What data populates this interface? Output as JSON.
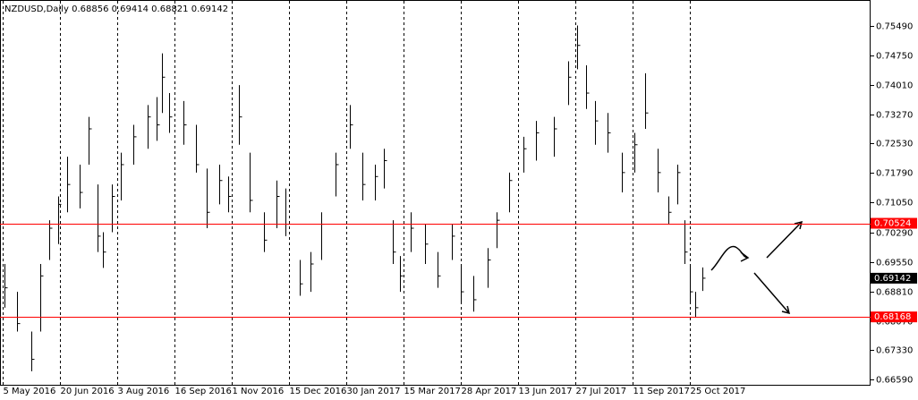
{
  "chart_data": {
    "type": "ohlc",
    "title": "NZDUSD,Daily",
    "last_bar": {
      "open": 0.68856,
      "high": 0.69414,
      "low": 0.68821,
      "close": 0.69142
    },
    "x": [
      1,
      8,
      16,
      21,
      26,
      31,
      36,
      43,
      48,
      53,
      56,
      61,
      66,
      73,
      81,
      86,
      89,
      93,
      101,
      108,
      114,
      121,
      126,
      132,
      138,
      146,
      153,
      158,
      166,
      172,
      178,
      186,
      194,
      201,
      208,
      213,
      218,
      222,
      228,
      236,
      243,
      251,
      256,
      263,
      271,
      276,
      283,
      291,
      298,
      308,
      316,
      321,
      326,
      331,
      338,
      346,
      353,
      359,
      366,
      372,
      377,
      381,
      384,
      387,
      391
    ],
    "high": [
      0.695,
      0.688,
      0.678,
      0.695,
      0.706,
      0.712,
      0.722,
      0.72,
      0.732,
      0.715,
      0.703,
      0.715,
      0.723,
      0.73,
      0.735,
      0.737,
      0.748,
      0.738,
      0.736,
      0.73,
      0.719,
      0.72,
      0.717,
      0.74,
      0.723,
      0.708,
      0.716,
      0.714,
      0.696,
      0.698,
      0.708,
      0.723,
      0.735,
      0.723,
      0.72,
      0.724,
      0.706,
      0.697,
      0.708,
      0.705,
      0.698,
      0.705,
      0.695,
      0.692,
      0.699,
      0.708,
      0.718,
      0.727,
      0.731,
      0.732,
      0.746,
      0.755,
      0.745,
      0.736,
      0.733,
      0.723,
      0.728,
      0.743,
      0.724,
      0.712,
      0.72,
      0.706,
      0.695,
      0.688,
      0.69414
    ],
    "low": [
      0.684,
      0.678,
      0.668,
      0.678,
      0.696,
      0.7,
      0.708,
      0.709,
      0.72,
      0.698,
      0.694,
      0.703,
      0.711,
      0.72,
      0.724,
      0.726,
      0.733,
      0.728,
      0.725,
      0.718,
      0.704,
      0.71,
      0.708,
      0.725,
      0.708,
      0.698,
      0.704,
      0.702,
      0.687,
      0.688,
      0.696,
      0.712,
      0.724,
      0.711,
      0.711,
      0.714,
      0.695,
      0.688,
      0.698,
      0.695,
      0.689,
      0.696,
      0.685,
      0.683,
      0.689,
      0.699,
      0.708,
      0.718,
      0.721,
      0.722,
      0.735,
      0.744,
      0.734,
      0.725,
      0.723,
      0.713,
      0.718,
      0.729,
      0.713,
      0.705,
      0.71,
      0.695,
      0.685,
      0.6817,
      0.68821
    ],
    "close": [
      0.689,
      0.68,
      0.671,
      0.692,
      0.704,
      0.71,
      0.715,
      0.713,
      0.729,
      0.702,
      0.698,
      0.712,
      0.72,
      0.727,
      0.732,
      0.73,
      0.742,
      0.732,
      0.73,
      0.72,
      0.708,
      0.716,
      0.712,
      0.732,
      0.711,
      0.701,
      0.712,
      0.705,
      0.69,
      0.695,
      0.705,
      0.72,
      0.73,
      0.715,
      0.717,
      0.721,
      0.698,
      0.692,
      0.704,
      0.7,
      0.692,
      0.702,
      0.688,
      0.686,
      0.696,
      0.706,
      0.716,
      0.724,
      0.728,
      0.729,
      0.742,
      0.75,
      0.738,
      0.731,
      0.728,
      0.718,
      0.725,
      0.733,
      0.718,
      0.708,
      0.718,
      0.698,
      0.688,
      0.684,
      0.69142
    ],
    "xlim": [
      0,
      485
    ],
    "xticks": [
      {
        "value": 0,
        "label": "5 May 2016"
      },
      {
        "value": 32,
        "label": "20 Jun 2016"
      },
      {
        "value": 64,
        "label": "3 Aug 2016"
      },
      {
        "value": 96,
        "label": "16 Sep 2016"
      },
      {
        "value": 128,
        "label": "1 Nov 2016"
      },
      {
        "value": 160,
        "label": "15 Dec 2016"
      },
      {
        "value": 192,
        "label": "30 Jan 2017"
      },
      {
        "value": 224,
        "label": "15 Mar 2017"
      },
      {
        "value": 256,
        "label": "28 Apr 2017"
      },
      {
        "value": 288,
        "label": "13 Jun 2017"
      },
      {
        "value": 320,
        "label": "27 Jul 2017"
      },
      {
        "value": 352,
        "label": "11 Sep 2017"
      },
      {
        "value": 384,
        "label": "25 Oct 2017"
      }
    ],
    "ylim": [
      0.6646,
      0.7612
    ],
    "yticks": [
      {
        "value": 0.6659,
        "label": "0.66590"
      },
      {
        "value": 0.6733,
        "label": "0.67330"
      },
      {
        "value": 0.6807,
        "label": "0.68070"
      },
      {
        "value": 0.6881,
        "label": "0.68810"
      },
      {
        "value": 0.6955,
        "label": "0.69550"
      },
      {
        "value": 0.7029,
        "label": "0.70290"
      },
      {
        "value": 0.7105,
        "label": "0.71050"
      },
      {
        "value": 0.7179,
        "label": "0.71790"
      },
      {
        "value": 0.7253,
        "label": "0.72530"
      },
      {
        "value": 0.7327,
        "label": "0.73270"
      },
      {
        "value": 0.7401,
        "label": "0.74010"
      },
      {
        "value": 0.7475,
        "label": "0.74750"
      },
      {
        "value": 0.7549,
        "label": "0.75490"
      }
    ],
    "hlines": [
      {
        "value": 0.70524,
        "color": "#ff0000"
      },
      {
        "value": 0.68168,
        "color": "#ff0000"
      }
    ],
    "current_price": 0.69142,
    "color": "#000000"
  }
}
